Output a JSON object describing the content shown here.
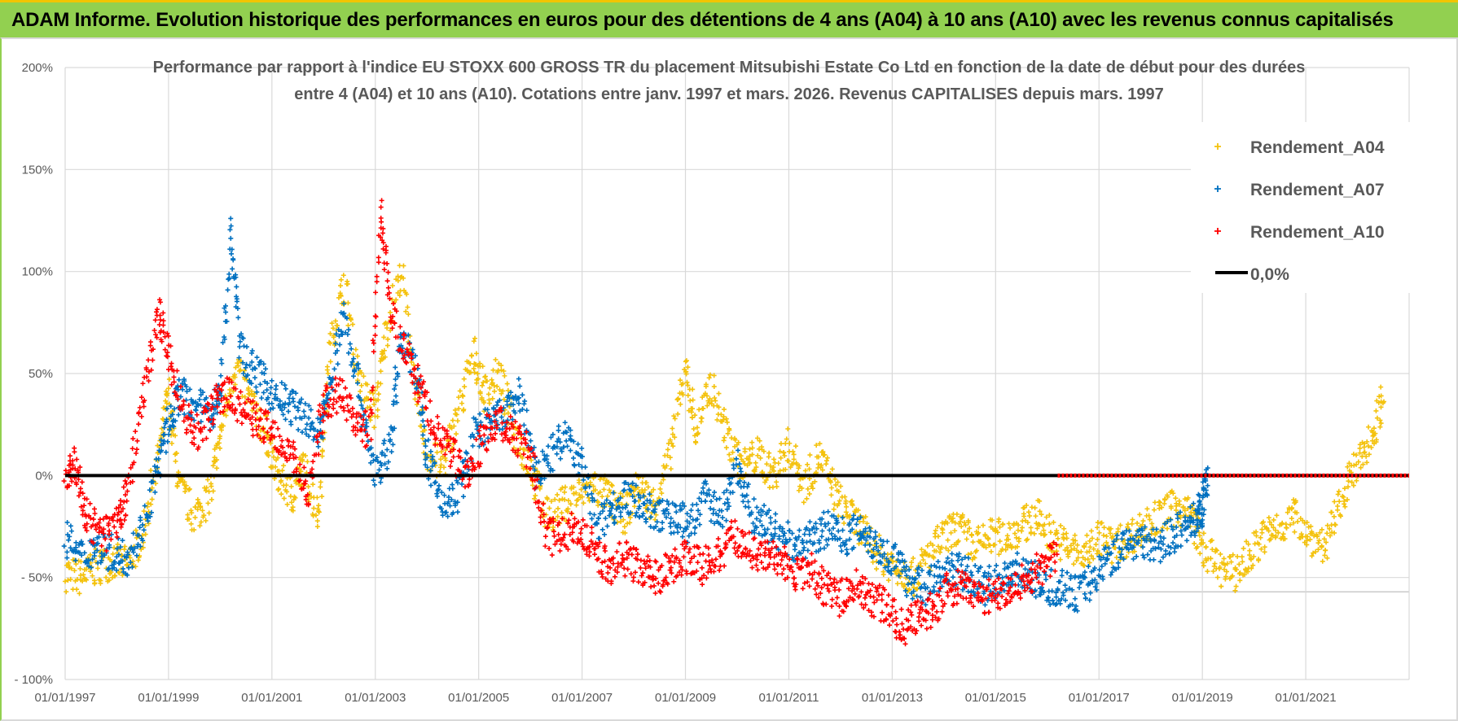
{
  "header": {
    "title": "ADAM Informe. Evolution historique des performances en euros pour des détentions de 4 ans (A04) à 10 ans (A10) avec les revenus connus capitalisés"
  },
  "colors": {
    "A04": "#f4c20d",
    "A07": "#0070c0",
    "A10": "#ff0000",
    "zero_line": "#000000",
    "header_bg": "#92d050"
  },
  "chart_data": {
    "type": "scatter",
    "title_line1": "Performance par rapport à l'indice EU STOXX 600 GROSS TR  du placement Mitsubishi Estate Co Ltd en fonction de la date de début pour des durées",
    "title_line2": "entre 4 (A04) et 10 ans (A10). Cotations entre janv. 1997 et mars. 2026. Revenus CAPITALISES depuis mars. 1997",
    "x_range": [
      1997.0,
      2023.0
    ],
    "ylim": [
      -100,
      200
    ],
    "y_ticks": [
      200,
      150,
      100,
      50,
      0,
      -50,
      -100
    ],
    "y_tick_labels": [
      "200%",
      "150%",
      "100%",
      "50%",
      "0%",
      "- 50%",
      "- 100%"
    ],
    "x_ticks": [
      1997,
      1999,
      2001,
      2003,
      2005,
      2007,
      2009,
      2011,
      2013,
      2015,
      2017,
      2019,
      2021
    ],
    "x_tick_labels": [
      "01/01/1997",
      "01/01/1999",
      "01/01/2001",
      "01/01/2003",
      "01/01/2005",
      "01/01/2007",
      "01/01/2009",
      "01/01/2011",
      "01/01/2013",
      "01/01/2015",
      "01/01/2017",
      "01/01/2019",
      "01/01/2021"
    ],
    "legend": [
      "Rendement_A04",
      "Rendement_A07",
      "Rendement_A10",
      "0,0%"
    ],
    "legend_position": "top-right",
    "series": [
      {
        "name": "Rendement_A04",
        "x": [
          1997.0,
          1997.3,
          1997.6,
          1997.9,
          1998.2,
          1998.5,
          1998.8,
          1999.0,
          1999.2,
          1999.5,
          1999.8,
          2000.0,
          2000.3,
          2000.6,
          2000.9,
          2001.1,
          2001.4,
          2001.6,
          2001.9,
          2002.1,
          2002.4,
          2002.7,
          2003.0,
          2003.2,
          2003.5,
          2003.8,
          2004.0,
          2004.3,
          2004.6,
          2004.9,
          2005.1,
          2005.4,
          2005.7,
          2006.0,
          2006.3,
          2006.6,
          2006.9,
          2007.2,
          2007.5,
          2007.8,
          2008.1,
          2008.4,
          2008.7,
          2009.0,
          2009.2,
          2009.5,
          2009.8,
          2010.1,
          2010.4,
          2010.7,
          2011.0,
          2011.3,
          2011.6,
          2011.9,
          2012.2,
          2012.5,
          2012.8,
          2013.1,
          2013.4,
          2013.7,
          2014.0,
          2014.3,
          2014.6,
          2014.9,
          2015.2,
          2015.5,
          2015.8,
          2016.1,
          2016.4,
          2016.7,
          2017.0,
          2017.3,
          2017.6,
          2017.9,
          2018.2,
          2018.5,
          2018.8,
          2019.0,
          2019.3,
          2019.6,
          2019.9,
          2020.2,
          2020.5,
          2020.8,
          2021.1,
          2021.4,
          2021.7,
          2022.0,
          2022.3,
          2022.5
        ],
        "values": [
          -48,
          -50,
          -45,
          -42,
          -44,
          -30,
          10,
          40,
          -5,
          -20,
          -10,
          20,
          55,
          35,
          20,
          0,
          -10,
          5,
          -20,
          60,
          95,
          45,
          30,
          70,
          100,
          40,
          10,
          5,
          30,
          60,
          40,
          50,
          20,
          5,
          -20,
          -15,
          -10,
          -5,
          -10,
          -20,
          -5,
          -15,
          10,
          55,
          20,
          45,
          20,
          5,
          10,
          0,
          15,
          -5,
          10,
          -10,
          -20,
          -30,
          -40,
          -45,
          -50,
          -40,
          -30,
          -25,
          -35,
          -30,
          -30,
          -25,
          -20,
          -30,
          -35,
          -40,
          -30,
          -35,
          -30,
          -25,
          -20,
          -15,
          -20,
          -35,
          -45,
          -48,
          -40,
          -30,
          -25,
          -20,
          -30,
          -35,
          -10,
          5,
          20,
          40
        ]
      },
      {
        "name": "Rendement_A07",
        "x": [
          1997.0,
          1997.3,
          1997.6,
          1997.9,
          1998.2,
          1998.5,
          1998.8,
          1999.0,
          1999.2,
          1999.5,
          1999.8,
          2000.0,
          2000.2,
          2000.4,
          2000.7,
          2001.0,
          2001.3,
          2001.6,
          2001.9,
          2002.1,
          2002.4,
          2002.7,
          2003.0,
          2003.3,
          2003.5,
          2003.8,
          2004.0,
          2004.3,
          2004.6,
          2004.9,
          2005.2,
          2005.5,
          2005.8,
          2006.1,
          2006.4,
          2006.7,
          2007.0,
          2007.3,
          2007.6,
          2007.9,
          2008.2,
          2008.5,
          2008.8,
          2009.1,
          2009.4,
          2009.7,
          2010.0,
          2010.3,
          2010.6,
          2010.9,
          2011.2,
          2011.5,
          2011.8,
          2012.1,
          2012.4,
          2012.7,
          2013.0,
          2013.3,
          2013.6,
          2013.9,
          2014.2,
          2014.5,
          2014.8,
          2015.1,
          2015.4,
          2015.7,
          2016.0,
          2016.3,
          2016.6,
          2016.9,
          2017.2,
          2017.5,
          2017.8,
          2018.1,
          2018.4,
          2018.7,
          2018.9,
          2019.0,
          2019.1
        ],
        "values": [
          -30,
          -40,
          -35,
          -38,
          -40,
          -25,
          5,
          25,
          40,
          35,
          30,
          40,
          120,
          60,
          50,
          40,
          35,
          30,
          20,
          40,
          80,
          40,
          0,
          15,
          70,
          50,
          10,
          -15,
          -10,
          20,
          25,
          30,
          40,
          0,
          10,
          20,
          5,
          -25,
          -15,
          -10,
          -15,
          -20,
          -20,
          -25,
          -10,
          -20,
          5,
          -20,
          -25,
          -30,
          -35,
          -30,
          -25,
          -30,
          -25,
          -35,
          -40,
          -50,
          -55,
          -50,
          -45,
          -50,
          -55,
          -50,
          -45,
          -50,
          -55,
          -55,
          -58,
          -50,
          -40,
          -35,
          -30,
          -35,
          -30,
          -25,
          -20,
          -15,
          0
        ]
      },
      {
        "name": "Rendement_A10",
        "x": [
          1997.0,
          1997.2,
          1997.4,
          1997.7,
          1998.0,
          1998.2,
          1998.5,
          1998.8,
          1999.0,
          1999.3,
          1999.6,
          1999.9,
          2000.2,
          2000.5,
          2000.8,
          2001.1,
          2001.4,
          2001.7,
          2002.0,
          2002.3,
          2002.6,
          2002.9,
          2003.1,
          2003.3,
          2003.6,
          2003.9,
          2004.2,
          2004.5,
          2004.8,
          2005.1,
          2005.4,
          2005.7,
          2006.0,
          2006.3,
          2006.6,
          2006.9,
          2007.2,
          2007.5,
          2007.8,
          2008.1,
          2008.4,
          2008.7,
          2009.0,
          2009.3,
          2009.6,
          2009.9,
          2010.2,
          2010.5,
          2010.8,
          2011.1,
          2011.4,
          2011.7,
          2012.0,
          2012.3,
          2012.6,
          2012.9,
          2013.2,
          2013.5,
          2013.8,
          2014.1,
          2014.4,
          2014.7,
          2015.0,
          2015.3,
          2015.6,
          2015.9,
          2016.2
        ],
        "values": [
          0,
          5,
          -20,
          -30,
          -25,
          -10,
          40,
          80,
          60,
          30,
          20,
          35,
          40,
          30,
          25,
          20,
          10,
          -10,
          35,
          40,
          30,
          20,
          130,
          80,
          60,
          40,
          20,
          10,
          0,
          20,
          25,
          20,
          10,
          -30,
          -30,
          -25,
          -35,
          -45,
          -40,
          -45,
          -50,
          -45,
          -40,
          -45,
          -40,
          -30,
          -35,
          -40,
          -40,
          -50,
          -45,
          -55,
          -60,
          -55,
          -60,
          -65,
          -75,
          -70,
          -65,
          -55,
          -55,
          -60,
          -58,
          -55,
          -50,
          -45,
          -40
        ]
      }
    ],
    "zero_line_start": 2016.2,
    "zero_line_end": 2023.0
  }
}
